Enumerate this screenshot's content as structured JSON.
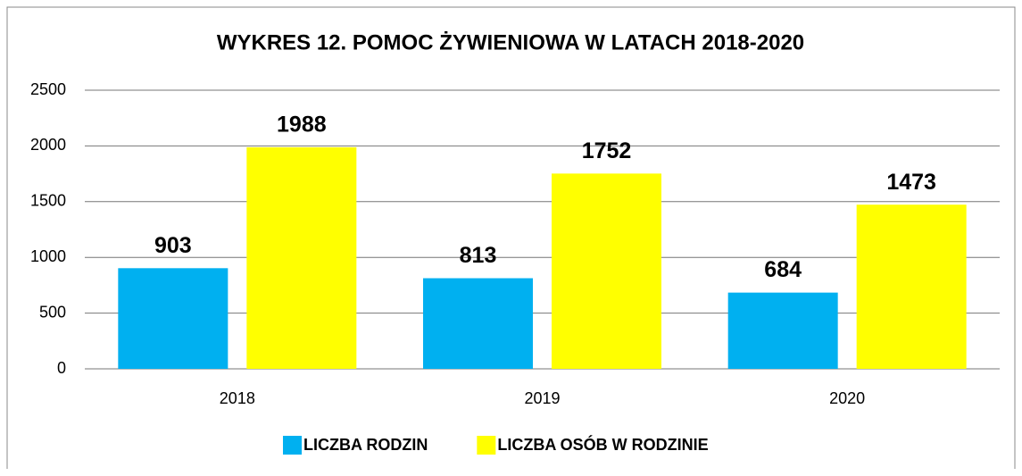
{
  "chart_data": {
    "type": "bar",
    "title": "WYKRES 12. POMOC ŻYWIENIOWA W LATACH 2018-2020",
    "categories": [
      "2018",
      "2019",
      "2020"
    ],
    "series": [
      {
        "name": "LICZBA RODZIN",
        "color": "#00b0f0",
        "values": [
          903,
          813,
          684
        ]
      },
      {
        "name": "LICZBA OSÓB W RODZINIE",
        "color": "#ffff00",
        "values": [
          1988,
          1752,
          1473
        ]
      }
    ],
    "ylim": [
      0,
      2500
    ],
    "yticks": [
      0,
      500,
      1000,
      1500,
      2000,
      2500
    ],
    "grid": true,
    "legend": "bottom"
  }
}
